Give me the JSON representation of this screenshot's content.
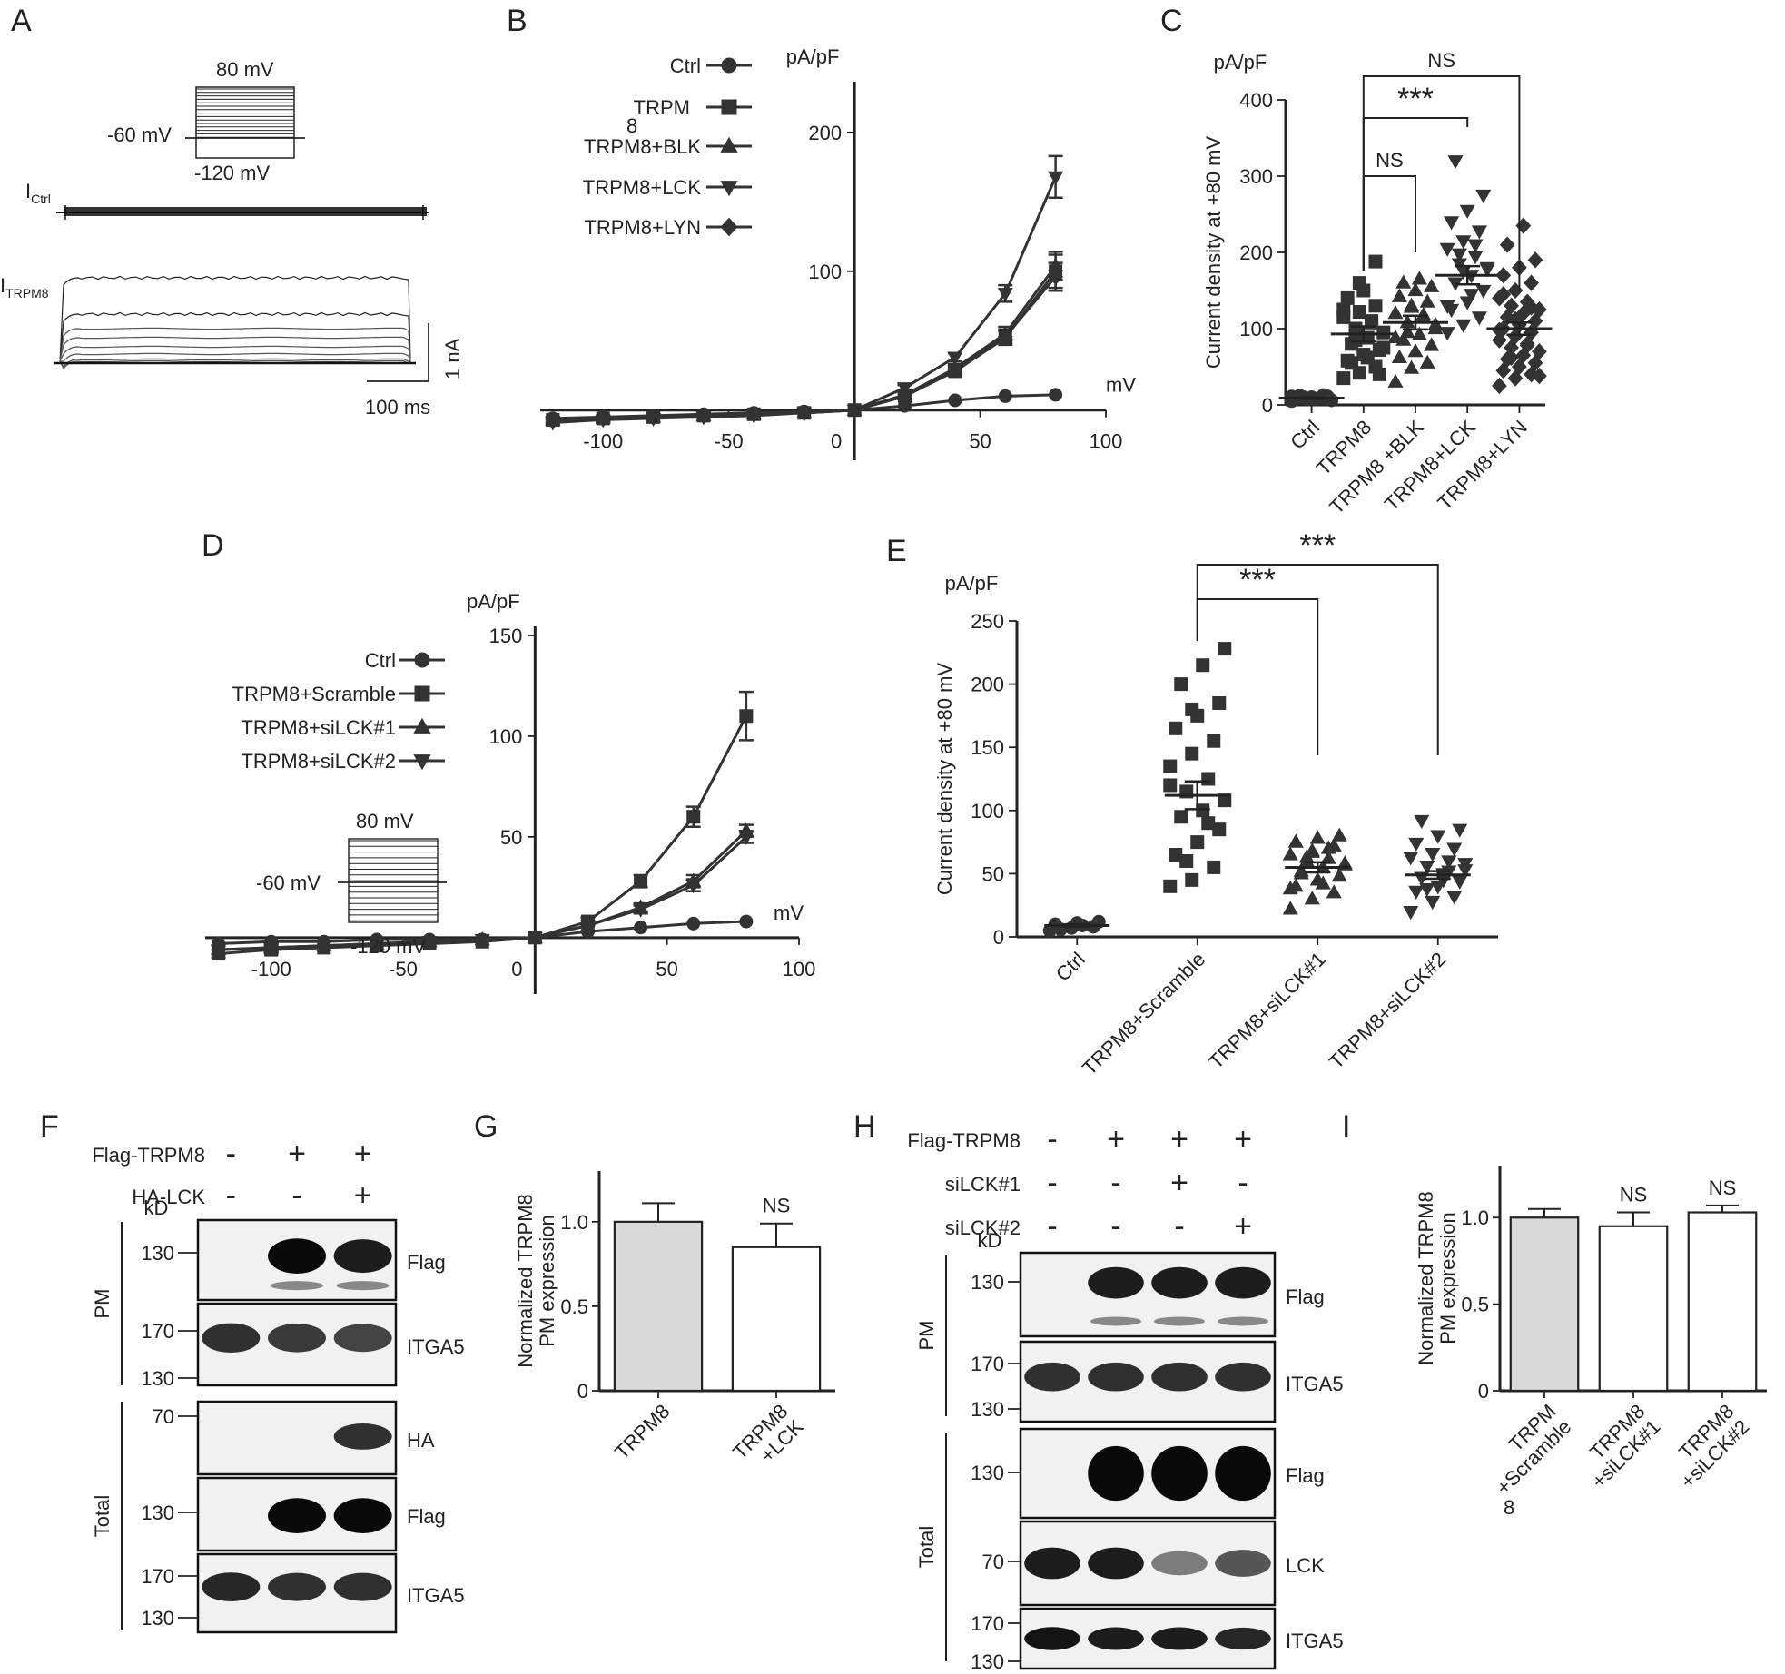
{
  "panels": {
    "A": "A",
    "B": "B",
    "C": "C",
    "D": "D",
    "E": "E",
    "F": "F",
    "G": "G",
    "H": "H",
    "I": "I"
  },
  "protocol": {
    "top": "80 mV",
    "hold": "-60 mV",
    "bottom": "-120 mV"
  },
  "traces": {
    "ctrl_label": "I",
    "ctrl_sub": "Ctrl",
    "trpm8_label": "I",
    "trpm8_sub": "TRPM8",
    "scale_y": "1 nA",
    "scale_x": "100 ms"
  },
  "chart_data": [
    {
      "panel": "B",
      "type": "line",
      "xlabel": "mV",
      "ylabel": "pA/pF",
      "xlim": [
        -125,
        100
      ],
      "ylim": [
        -10,
        230
      ],
      "xticks": [
        -100,
        -50,
        0,
        50,
        100
      ],
      "yticks": [
        100,
        200
      ],
      "legend": [
        "Ctrl",
        "TRPM",
        "8",
        "TRPM8+BLK",
        "TRPM8+LCK",
        "TRPM8+LYN"
      ],
      "x": [
        -120,
        -100,
        -80,
        -60,
        -40,
        -20,
        0,
        20,
        40,
        60,
        80
      ],
      "series": [
        {
          "name": "Ctrl",
          "marker": "circle",
          "values": [
            -6,
            -5,
            -4,
            -3,
            -2,
            -1,
            0,
            3,
            7,
            10,
            11
          ],
          "err": [
            1,
            1,
            1,
            1,
            1,
            1,
            0,
            1,
            1,
            1,
            1
          ]
        },
        {
          "name": "TRPM8",
          "marker": "square",
          "values": [
            -7,
            -6,
            -5,
            -4,
            -3,
            -2,
            0,
            10,
            28,
            52,
            100
          ],
          "err": [
            2,
            2,
            1,
            1,
            1,
            1,
            0,
            2,
            3,
            5,
            12
          ]
        },
        {
          "name": "TRPM8+BLK",
          "marker": "triangle-up",
          "values": [
            -7,
            -6,
            -5,
            -4,
            -3,
            -2,
            0,
            11,
            30,
            55,
            104
          ],
          "err": [
            2,
            2,
            1,
            1,
            1,
            1,
            0,
            2,
            3,
            5,
            10
          ]
        },
        {
          "name": "TRPM8+LCK",
          "marker": "triangle-down",
          "values": [
            -9,
            -7,
            -6,
            -5,
            -4,
            -2,
            0,
            16,
            38,
            84,
            168
          ],
          "err": [
            2,
            2,
            1,
            1,
            1,
            1,
            0,
            2,
            3,
            6,
            15
          ]
        },
        {
          "name": "TRPM8+LYN",
          "marker": "diamond",
          "values": [
            -7,
            -6,
            -5,
            -4,
            -3,
            -2,
            0,
            10,
            29,
            53,
            96
          ],
          "err": [
            2,
            2,
            1,
            1,
            1,
            1,
            0,
            2,
            3,
            5,
            10
          ]
        }
      ]
    },
    {
      "panel": "C",
      "type": "scatter",
      "ylabel": "Current density at +80 mV",
      "yunit": "pA/pF",
      "ylim": [
        0,
        400
      ],
      "yticks": [
        0,
        100,
        200,
        300,
        400
      ],
      "categories": [
        "Ctrl",
        "TRPM8",
        "TRPM8 +BLK",
        "TRPM8+LCK",
        "TRPM8+LYN"
      ],
      "means": [
        9,
        93,
        108,
        170,
        100
      ],
      "sem": [
        1,
        10,
        9,
        12,
        8
      ],
      "points": [
        [
          5,
          7,
          8,
          9,
          10,
          11,
          12,
          8,
          6,
          10,
          9,
          11,
          7,
          13,
          8,
          10
        ],
        [
          35,
          42,
          50,
          58,
          66,
          72,
          80,
          88,
          95,
          100,
          108,
          115,
          122,
          130,
          140,
          150,
          40,
          55,
          62,
          75,
          85,
          110,
          125,
          160,
          188
        ],
        [
          30,
          48,
          55,
          62,
          70,
          78,
          85,
          92,
          100,
          108,
          115,
          120,
          128,
          135,
          142,
          150,
          155,
          160,
          165,
          105,
          95,
          118,
          88,
          130
        ],
        [
          95,
          105,
          115,
          125,
          135,
          150,
          160,
          170,
          178,
          185,
          195,
          205,
          215,
          228,
          240,
          255,
          275,
          320,
          145,
          180,
          198,
          210,
          130,
          175
        ],
        [
          25,
          35,
          40,
          45,
          50,
          55,
          60,
          65,
          70,
          75,
          80,
          85,
          90,
          95,
          100,
          105,
          110,
          115,
          120,
          125,
          130,
          135,
          140,
          150,
          160,
          170,
          180,
          190,
          210,
          235,
          38,
          62,
          78,
          98,
          112,
          128,
          145
        ]
      ],
      "significance": [
        {
          "from": 1,
          "to": 4,
          "label": "NS"
        },
        {
          "from": 1,
          "to": 3,
          "label": "***"
        },
        {
          "from": 1,
          "to": 2,
          "label": "NS"
        }
      ]
    },
    {
      "panel": "D",
      "type": "line",
      "xlabel": "mV",
      "ylabel": "pA/pF",
      "xlim": [
        -125,
        100
      ],
      "ylim": [
        -10,
        150
      ],
      "xticks": [
        -100,
        -50,
        0,
        50,
        100
      ],
      "yticks": [
        50,
        100,
        150
      ],
      "legend": [
        "Ctrl",
        "TRPM8+Scramble",
        "TRPM8+siLCK#1",
        "TRPM8+siLCK#2"
      ],
      "x": [
        -120,
        -100,
        -80,
        -60,
        -40,
        -20,
        0,
        20,
        40,
        60,
        80
      ],
      "series": [
        {
          "name": "Ctrl",
          "marker": "circle",
          "values": [
            -3,
            -2,
            -2,
            -1,
            -1,
            -1,
            0,
            3,
            5,
            7,
            8
          ],
          "err": [
            1,
            1,
            1,
            1,
            1,
            1,
            0,
            1,
            1,
            1,
            1
          ]
        },
        {
          "name": "TRPM8+Scramble",
          "marker": "square",
          "values": [
            -8,
            -6,
            -5,
            -4,
            -3,
            -2,
            0,
            8,
            28,
            60,
            110
          ],
          "err": [
            2,
            2,
            1,
            1,
            1,
            1,
            0,
            2,
            3,
            5,
            12
          ]
        },
        {
          "name": "TRPM8+siLCK#1",
          "marker": "triangle-up",
          "values": [
            -6,
            -5,
            -4,
            -3,
            -2,
            -1,
            0,
            6,
            15,
            28,
            53
          ],
          "err": [
            2,
            2,
            1,
            1,
            1,
            1,
            0,
            1,
            2,
            3,
            3
          ]
        },
        {
          "name": "TRPM8+siLCK#2",
          "marker": "triangle-down",
          "values": [
            -6,
            -5,
            -4,
            -3,
            -2,
            -1,
            0,
            6,
            14,
            26,
            50
          ],
          "err": [
            2,
            2,
            1,
            1,
            1,
            1,
            0,
            1,
            2,
            3,
            3
          ]
        }
      ]
    },
    {
      "panel": "E",
      "type": "scatter",
      "ylabel": "Current density at +80 mV",
      "yunit": "pA/pF",
      "ylim": [
        0,
        250
      ],
      "yticks": [
        0,
        50,
        100,
        150,
        200,
        250
      ],
      "categories": [
        "Ctrl",
        "TRPM8+Scramble",
        "TRPM8+siLCK#1",
        "TRPM8+siLCK#2"
      ],
      "means": [
        9,
        112,
        55,
        49
      ],
      "sem": [
        1,
        11,
        4,
        3
      ],
      "points": [
        [
          5,
          7,
          8,
          10,
          11,
          12,
          6,
          9
        ],
        [
          40,
          45,
          55,
          65,
          75,
          85,
          95,
          100,
          108,
          115,
          125,
          135,
          145,
          155,
          165,
          175,
          185,
          200,
          215,
          228,
          60,
          90,
          120,
          180
        ],
        [
          22,
          30,
          35,
          40,
          45,
          48,
          52,
          55,
          58,
          60,
          62,
          65,
          68,
          72,
          75,
          78,
          80,
          50,
          42,
          57,
          63,
          70,
          38,
          67
        ],
        [
          20,
          28,
          32,
          36,
          40,
          44,
          47,
          50,
          53,
          56,
          60,
          63,
          66,
          70,
          74,
          80,
          85,
          92,
          45,
          58,
          38,
          52
        ]
      ],
      "significance": [
        {
          "from": 1,
          "to": 3,
          "label": "***"
        },
        {
          "from": 1,
          "to": 2,
          "label": "***"
        }
      ]
    },
    {
      "panel": "G",
      "type": "bar",
      "ylabel": "Normalized TRPM8 PM expression",
      "ylim": [
        0,
        1.3
      ],
      "yticks": [
        0,
        0.5,
        1.0
      ],
      "categories": [
        "TRPM8",
        "TRPM8 +LCK"
      ],
      "values": [
        1.0,
        0.85
      ],
      "err": [
        0.11,
        0.14
      ],
      "significance": [
        "",
        "NS"
      ]
    },
    {
      "panel": "I",
      "type": "bar",
      "ylabel": "Normalized TRPM8 PM expression",
      "ylim": [
        0,
        1.3
      ],
      "yticks": [
        0,
        0.5,
        1.0
      ],
      "categories": [
        "TRPM +Scramble",
        "TRPM8 +siLCK#1",
        "TRPM8 +siLCK#2"
      ],
      "category_extra": "8",
      "values": [
        1.0,
        0.95,
        1.03
      ],
      "err": [
        0.05,
        0.08,
        0.04
      ],
      "significance": [
        "",
        "NS",
        "NS"
      ]
    }
  ],
  "blot_F": {
    "conditions": [
      {
        "label": "Flag-TRPM8",
        "marks": [
          "-",
          "+",
          "+"
        ]
      },
      {
        "label": "HA-LCK",
        "marks": [
          "-",
          "-",
          "+"
        ]
      }
    ],
    "kd": "kD",
    "groups": [
      "PM",
      "Total"
    ],
    "strips": [
      {
        "label": "Flag",
        "mw": [
          "130"
        ],
        "bands": [
          0,
          1,
          0.9
        ],
        "faint": true
      },
      {
        "label": "ITGA5",
        "mw": [
          "170",
          "130"
        ],
        "bands": [
          0.8,
          0.75,
          0.7
        ]
      },
      {
        "label": "HA",
        "mw": [
          "70"
        ],
        "bands": [
          0,
          0,
          0.8
        ]
      },
      {
        "label": "Flag",
        "mw": [
          "130"
        ],
        "bands": [
          0,
          1,
          1
        ]
      },
      {
        "label": "ITGA5",
        "mw": [
          "170",
          "130"
        ],
        "bands": [
          0.85,
          0.8,
          0.8
        ]
      }
    ]
  },
  "blot_H": {
    "conditions": [
      {
        "label": "Flag-TRPM8",
        "marks": [
          "-",
          "+",
          "+",
          "+"
        ]
      },
      {
        "label": "siLCK#1",
        "marks": [
          "-",
          "-",
          "+",
          "-"
        ]
      },
      {
        "label": "siLCK#2",
        "marks": [
          "-",
          "-",
          "-",
          "+"
        ]
      }
    ],
    "kd": "kD",
    "groups": [
      "PM",
      "Total"
    ],
    "strips": [
      {
        "label": "Flag",
        "mw": [
          "130"
        ],
        "bands": [
          0,
          0.9,
          0.9,
          0.9
        ],
        "faint": true
      },
      {
        "label": "ITGA5",
        "mw": [
          "170",
          "130"
        ],
        "bands": [
          0.8,
          0.8,
          0.8,
          0.8
        ]
      },
      {
        "label": "Flag",
        "mw": [
          "130"
        ],
        "bands": [
          0,
          1,
          1,
          1
        ]
      },
      {
        "label": "LCK",
        "mw": [
          "70"
        ],
        "bands": [
          0.9,
          0.9,
          0.4,
          0.6
        ]
      },
      {
        "label": "ITGA5",
        "mw": [
          "170",
          "130"
        ],
        "bands": [
          0.95,
          0.9,
          0.9,
          0.85
        ]
      }
    ]
  }
}
